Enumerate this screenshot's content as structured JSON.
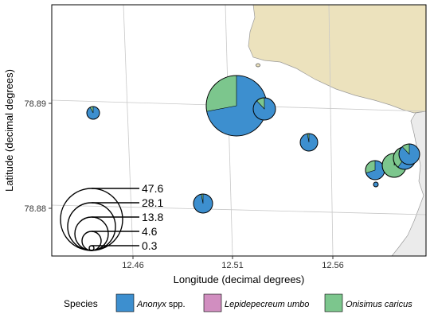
{
  "axes": {
    "xlabel": "Longitude (decimal degrees)",
    "ylabel": "Latitude (decimal degrees)",
    "x_ticks": [
      "12.46",
      "12.51",
      "12.56"
    ],
    "y_ticks": [
      "78.88",
      "78.89"
    ]
  },
  "size_legend": {
    "values": [
      "47.6",
      "28.1",
      "13.8",
      "4.6",
      "0.3"
    ]
  },
  "species_legend": {
    "title": "Species",
    "items": [
      {
        "label": "Anonyx",
        "suffix": " spp.",
        "color": "#3d8fcf"
      },
      {
        "label": "Lepidepecreum umbo",
        "suffix": "",
        "color": "#d18ec0"
      },
      {
        "label": "Onisimus caricus",
        "suffix": "",
        "color": "#7cc68d"
      }
    ]
  },
  "colors": {
    "land": "#ece2bd",
    "grey_land": "#ebebeb",
    "grid": "#c8c8c8",
    "anonyx": "#3d8fcf",
    "onisimus": "#7cc68d"
  }
}
